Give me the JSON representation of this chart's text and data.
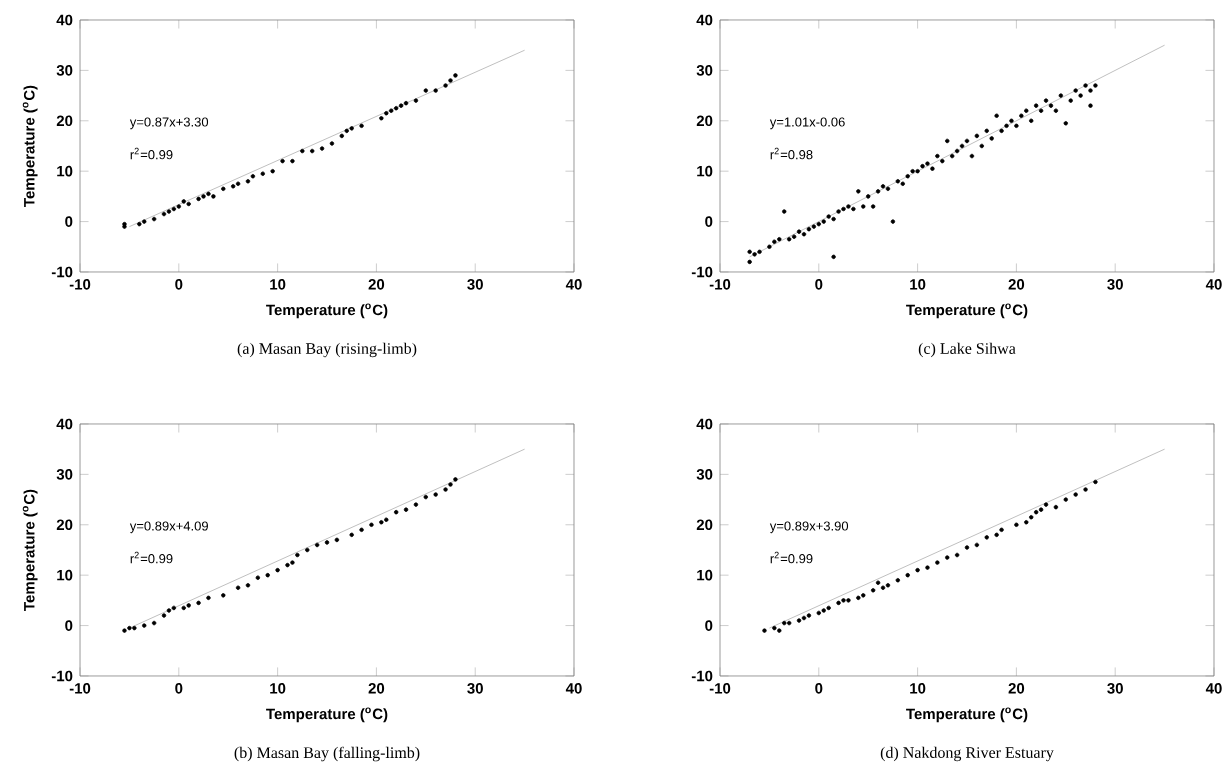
{
  "chart_data": [
    {
      "type": "scatter",
      "title": "(a)  Masan Bay (rising-limb)",
      "xlabel": "Temperature ($^{o}$C)",
      "ylabel": "Temperature ($^{o}$C)",
      "annotations": [
        "y=0.87x+3.30",
        "r$^{2}$=0.99"
      ],
      "xlim": [
        -10,
        40
      ],
      "ylim": [
        -10,
        40
      ],
      "xticks": [
        -10,
        0,
        10,
        20,
        30,
        40
      ],
      "yticks": [
        -10,
        0,
        10,
        20,
        30,
        40
      ],
      "marker": "circle",
      "series": [
        {
          "color": "#000000",
          "x": [
            -5.5,
            -5.5,
            -4,
            -3.5,
            -2.5,
            -1.5,
            -1,
            -0.5,
            0,
            0.5,
            1,
            2,
            2.5,
            3,
            3.5,
            4.5,
            5.5,
            6,
            7,
            7.5,
            8.5,
            9.5,
            10.5,
            11.5,
            12.5,
            13.5,
            14.5,
            15.5,
            16.5,
            17,
            17.5,
            18.5,
            20.5,
            21,
            21.5,
            22,
            22.5,
            23,
            24,
            25,
            26,
            27,
            27.5,
            28
          ],
          "values": [
            -1,
            -0.5,
            -0.5,
            0,
            0.5,
            1.5,
            2,
            2.5,
            3,
            4,
            3.5,
            4.5,
            5,
            5.5,
            5,
            6.5,
            7,
            7.5,
            8,
            9,
            9.5,
            10,
            12,
            12,
            14,
            14,
            14.5,
            15.5,
            17,
            18,
            18.5,
            19,
            20.5,
            21.5,
            22,
            22.5,
            23,
            23.5,
            24,
            26,
            26,
            27,
            28,
            29
          ]
        },
        {
          "type": "line",
          "marker": "none",
          "color": "#c0c0c0",
          "x": [
            -5,
            35
          ],
          "values": [
            -1,
            34
          ]
        }
      ]
    },
    {
      "type": "scatter",
      "title": "(c)  Lake Sihwa",
      "xlabel": "Temperature ($^{o}$C)",
      "annotations": [
        "y=1.01x-0.06",
        "r$^{2}$=0.98"
      ],
      "xlim": [
        -10,
        40
      ],
      "ylim": [
        -10,
        40
      ],
      "xticks": [
        -10,
        0,
        10,
        20,
        30,
        40
      ],
      "yticks": [
        -10,
        0,
        10,
        20,
        30,
        40
      ],
      "marker": "circle",
      "series": [
        {
          "color": "#000000",
          "x": [
            -7,
            -7,
            -6.5,
            -6,
            -5,
            -4.5,
            -4,
            -3.5,
            -3,
            -2.5,
            -2,
            -1.5,
            -1,
            -0.5,
            0,
            0.5,
            1,
            1.5,
            1.5,
            2,
            2.5,
            3,
            3.5,
            4,
            4.5,
            5,
            5.5,
            6,
            6.5,
            7,
            7.5,
            8,
            8.5,
            9,
            9.5,
            10,
            10.5,
            11,
            11.5,
            12,
            12.5,
            13,
            13.5,
            14,
            14.5,
            15,
            15.5,
            16,
            16.5,
            17,
            17.5,
            18,
            18.5,
            19,
            19.5,
            20,
            20.5,
            21,
            21.5,
            22,
            22.5,
            23,
            23.5,
            24,
            24.5,
            25,
            25.5,
            26,
            26.5,
            27,
            27.5,
            28,
            27.5
          ],
          "values": [
            -8,
            -6,
            -6.5,
            -6,
            -5,
            -4,
            -3.5,
            2,
            -3.5,
            -3,
            -2,
            -2.5,
            -1.5,
            -1,
            -0.5,
            0,
            1,
            -7,
            0.5,
            2,
            2.5,
            3,
            2.5,
            6,
            3,
            5,
            3,
            6,
            7,
            6.5,
            0,
            8,
            7.5,
            9,
            10,
            10,
            11,
            11.5,
            10.5,
            13,
            12,
            16,
            13,
            14,
            15,
            16,
            13,
            17,
            15,
            18,
            16.5,
            21,
            18,
            19,
            20,
            19,
            21,
            22,
            20,
            23,
            22,
            24,
            23,
            22,
            25,
            19.5,
            24,
            26,
            25,
            27,
            26,
            27,
            23
          ]
        },
        {
          "type": "line",
          "marker": "none",
          "color": "#c0c0c0",
          "x": [
            -7,
            35
          ],
          "values": [
            -7,
            35
          ]
        }
      ]
    },
    {
      "type": "scatter",
      "title": "(b)  Masan Bay (falling-limb)",
      "xlabel": "Temperature ($^{o}$C)",
      "ylabel": "Temperature ($^{o}$C)",
      "annotations": [
        "y=0.89x+4.09",
        "r$^{2}$=0.99"
      ],
      "xlim": [
        -10,
        40
      ],
      "ylim": [
        -10,
        40
      ],
      "xticks": [
        -10,
        0,
        10,
        20,
        30,
        40
      ],
      "yticks": [
        -10,
        0,
        10,
        20,
        30,
        40
      ],
      "marker": "circle",
      "series": [
        {
          "color": "#000000",
          "x": [
            -5.5,
            -5,
            -4.5,
            -3.5,
            -2.5,
            -1.5,
            -1,
            -0.5,
            0.5,
            1,
            2,
            3,
            4.5,
            6,
            7,
            8,
            9,
            10,
            11,
            11.5,
            12,
            13,
            14,
            15,
            16,
            17.5,
            18.5,
            19.5,
            20.5,
            21,
            22,
            23,
            24,
            25,
            26,
            27,
            27.5,
            28
          ],
          "values": [
            -1,
            -0.5,
            -0.5,
            0,
            0.5,
            2,
            3,
            3.5,
            3.5,
            4,
            4.5,
            5.5,
            6,
            7.5,
            8,
            9.5,
            10,
            11,
            12,
            12.5,
            14,
            15,
            16,
            16.5,
            17,
            18,
            19,
            20,
            20.5,
            21,
            22.5,
            23,
            24,
            25.5,
            26,
            27,
            28,
            29
          ]
        },
        {
          "type": "line",
          "marker": "none",
          "color": "#c0c0c0",
          "x": [
            -5,
            35
          ],
          "values": [
            -0.5,
            35
          ]
        }
      ]
    },
    {
      "type": "scatter",
      "title": "(d)  Nakdong River Estuary",
      "xlabel": "Temperature ($^{o}$C)",
      "annotations": [
        "y=0.89x+3.90",
        "r$^{2}$=0.99"
      ],
      "xlim": [
        -10,
        40
      ],
      "ylim": [
        -10,
        40
      ],
      "xticks": [
        -10,
        0,
        10,
        20,
        30,
        40
      ],
      "yticks": [
        -10,
        0,
        10,
        20,
        30,
        40
      ],
      "marker": "circle",
      "series": [
        {
          "color": "#000000",
          "x": [
            -5.5,
            -4.5,
            -4,
            -3.5,
            -3,
            -2,
            -1.5,
            -1,
            0,
            0.5,
            1,
            2,
            2.5,
            3,
            4,
            4.5,
            5.5,
            6,
            6.5,
            7,
            8,
            9,
            10,
            11,
            12,
            13,
            14,
            15,
            16,
            17,
            18,
            18.5,
            20,
            21,
            21.5,
            22,
            22.5,
            23,
            24,
            25,
            26,
            27,
            28
          ],
          "values": [
            -1,
            -0.5,
            -1,
            0.5,
            0.5,
            1,
            1.5,
            2,
            2.5,
            3,
            3.5,
            4.5,
            5,
            5,
            5.5,
            6,
            7,
            8.5,
            7.5,
            8,
            9,
            10,
            11,
            11.5,
            12.5,
            13.5,
            14,
            15.5,
            16,
            17.5,
            18,
            19,
            20,
            20.5,
            21.5,
            22.5,
            23,
            24,
            23.5,
            25,
            26,
            27,
            28.5
          ]
        },
        {
          "type": "line",
          "marker": "none",
          "color": "#c0c0c0",
          "x": [
            -5,
            35
          ],
          "values": [
            -0.5,
            35
          ]
        }
      ]
    }
  ]
}
